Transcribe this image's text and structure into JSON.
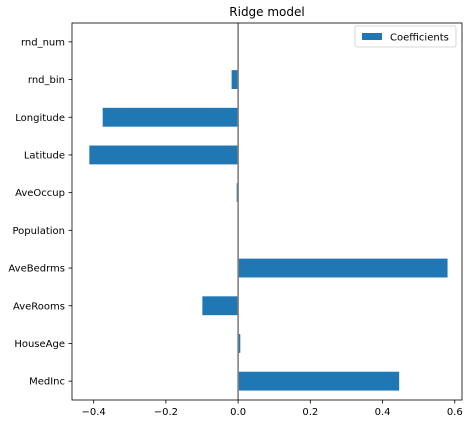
{
  "chart_data": {
    "type": "bar",
    "orientation": "horizontal",
    "title": "Ridge model",
    "xlabel": "",
    "ylabel": "",
    "categories": [
      "MedInc",
      "HouseAge",
      "AveRooms",
      "AveBedrms",
      "Population",
      "AveOccup",
      "Latitude",
      "Longitude",
      "rnd_bin",
      "rnd_num"
    ],
    "series": [
      {
        "name": "Coefficients",
        "values": [
          0.446,
          0.006,
          -0.099,
          0.58,
          0.0,
          -0.004,
          -0.412,
          -0.375,
          -0.018,
          0.0
        ]
      }
    ],
    "xlim": [
      -0.46,
      0.62
    ],
    "xticks": [
      -0.4,
      -0.2,
      0.0,
      0.2,
      0.4,
      0.6
    ],
    "xtick_labels": [
      "−0.4",
      "−0.2",
      "0.0",
      "0.2",
      "0.4",
      "0.6"
    ],
    "reference_line": 0,
    "grid": false,
    "legend_position": "top-right",
    "colors": {
      "bar": "#1f77b4",
      "zero_line": "#808080",
      "axes": "#000000"
    }
  }
}
